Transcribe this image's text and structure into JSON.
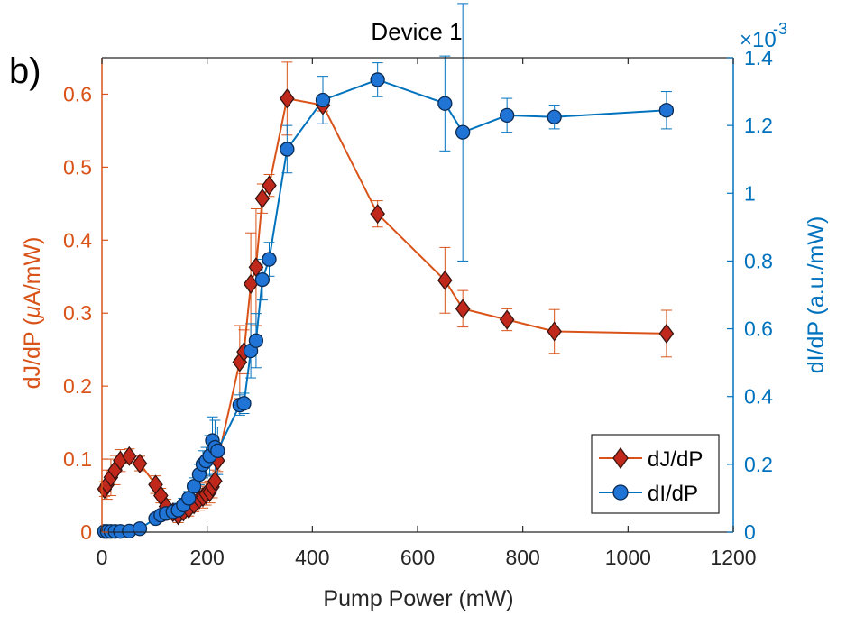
{
  "panel_label": "b)",
  "chart_data": {
    "type": "line",
    "title": "Device 1",
    "xlabel": "Pump Power (mW)",
    "ylabel_left_parts": [
      "dJ/dP (",
      "μ",
      "A/mW)"
    ],
    "ylabel_right": "dI/dP (a.u./mW)",
    "right_exponent": "×10",
    "right_exponent_power": "-3",
    "xlim": [
      0,
      1200
    ],
    "ylim_left": [
      0,
      0.65
    ],
    "ylim_right": [
      0,
      1.4
    ],
    "xticks": [
      0,
      200,
      400,
      600,
      800,
      1000,
      1200
    ],
    "xtick_labels": [
      "0",
      "200",
      "400",
      "600",
      "800",
      "1000",
      "1200"
    ],
    "yticks_left": [
      0,
      0.1,
      0.2,
      0.3,
      0.4,
      0.5,
      0.6
    ],
    "ytick_labels_left": [
      "0",
      "0.1",
      "0.2",
      "0.3",
      "0.4",
      "0.5",
      "0.6"
    ],
    "yticks_right": [
      0,
      0.2,
      0.4,
      0.6,
      0.8,
      1,
      1.2,
      1.4
    ],
    "ytick_labels_right": [
      "0",
      "0.2",
      "0.4",
      "0.6",
      "0.8",
      "1",
      "1.2",
      "1.4"
    ],
    "colors": {
      "left": "#d95319",
      "left_marker": "#c0281b",
      "right": "#0072bd",
      "right_marker": "#1f74d6",
      "axis": "#262626"
    },
    "legend_position": "bottom-right",
    "series": [
      {
        "name": "dJ/dP",
        "axis": "left",
        "marker": "diamond",
        "x": [
          5,
          10,
          17,
          25,
          35,
          52,
          72,
          102,
          112,
          122,
          135,
          145,
          155,
          165,
          175,
          185,
          192,
          198,
          205,
          210,
          215,
          220,
          262,
          270,
          283,
          293,
          305,
          318,
          352,
          420,
          524,
          652,
          686,
          770,
          860,
          1073
        ],
        "y": [
          0.059,
          0.065,
          0.075,
          0.085,
          0.098,
          0.104,
          0.094,
          0.065,
          0.05,
          0.035,
          0.027,
          0.023,
          0.028,
          0.032,
          0.038,
          0.045,
          0.048,
          0.052,
          0.055,
          0.062,
          0.07,
          0.098,
          0.233,
          0.247,
          0.34,
          0.363,
          0.457,
          0.475,
          0.594,
          0.585,
          0.436,
          0.345,
          0.306,
          0.291,
          0.275,
          0.272
        ],
        "err": [
          0.01,
          0.02,
          0.025,
          0.02,
          0.015,
          0.01,
          0.01,
          0.012,
          0.01,
          0.01,
          0.01,
          0.01,
          0.01,
          0.01,
          0.01,
          0.015,
          0.015,
          0.015,
          0.015,
          0.015,
          0.015,
          0.015,
          0.05,
          0.03,
          0.07,
          0.08,
          0.02,
          0.015,
          0.05,
          0.008,
          0.018,
          0.045,
          0.025,
          0.015,
          0.03,
          0.032
        ]
      },
      {
        "name": "dI/dP",
        "axis": "right",
        "marker": "circle",
        "x": [
          5,
          10,
          17,
          25,
          35,
          52,
          72,
          102,
          112,
          122,
          135,
          145,
          155,
          165,
          175,
          185,
          192,
          198,
          205,
          210,
          215,
          220,
          262,
          270,
          283,
          293,
          305,
          318,
          352,
          420,
          524,
          652,
          686,
          770,
          860,
          1073
        ],
        "y": [
          0.002,
          0.002,
          0.002,
          0.002,
          0.002,
          0.003,
          0.01,
          0.04,
          0.05,
          0.055,
          0.06,
          0.065,
          0.08,
          0.1,
          0.135,
          0.17,
          0.2,
          0.21,
          0.225,
          0.27,
          0.25,
          0.24,
          0.375,
          0.38,
          0.535,
          0.565,
          0.745,
          0.805,
          1.13,
          1.275,
          1.335,
          1.265,
          1.18,
          1.23,
          1.225,
          1.245
        ],
        "err": [
          0.005,
          0.005,
          0.005,
          0.005,
          0.005,
          0.005,
          0.01,
          0.01,
          0.015,
          0.015,
          0.02,
          0.02,
          0.02,
          0.02,
          0.025,
          0.03,
          0.04,
          0.04,
          0.06,
          0.07,
          0.08,
          0.07,
          0.03,
          0.03,
          0.08,
          0.08,
          0.06,
          0.05,
          0.07,
          0.07,
          0.05,
          0.14,
          0.38,
          0.05,
          0.035,
          0.055
        ]
      }
    ]
  }
}
